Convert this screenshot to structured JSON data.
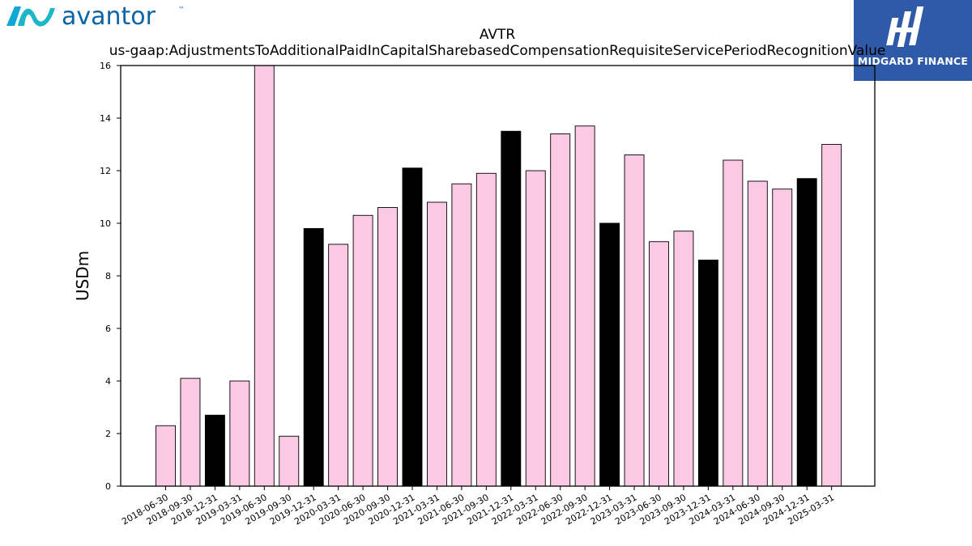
{
  "brand_left": {
    "name": "avantor",
    "tm": "™"
  },
  "brand_right": {
    "name": "MIDGARD FINANCE"
  },
  "colors": {
    "highlight": "#000000",
    "normal": "#fbc9e3",
    "edge": "#000000",
    "brand_blue": "#2e5aa8",
    "avantor_teal": "#0fa7d6"
  },
  "chart_data": {
    "type": "bar",
    "title": "AVTR",
    "subtitle": "us-gaap:AdjustmentsToAdditionalPaidInCapitalSharebasedCompensationRequisiteServicePeriodRecognitionValue",
    "xlabel": "",
    "ylabel": "USDm",
    "ylim": [
      0,
      16
    ],
    "yticks": [
      0,
      2,
      4,
      6,
      8,
      10,
      12,
      14,
      16
    ],
    "grid": false,
    "categories": [
      "2018-06-30",
      "2018-09-30",
      "2018-12-31",
      "2019-03-31",
      "2019-06-30",
      "2019-09-30",
      "2019-12-31",
      "2020-03-31",
      "2020-06-30",
      "2020-09-30",
      "2020-12-31",
      "2021-03-31",
      "2021-06-30",
      "2021-09-30",
      "2021-12-31",
      "2022-03-31",
      "2022-06-30",
      "2022-09-30",
      "2022-12-31",
      "2023-03-31",
      "2023-06-30",
      "2023-09-30",
      "2023-12-31",
      "2024-03-31",
      "2024-06-30",
      "2024-09-30",
      "2024-12-31",
      "2025-03-31"
    ],
    "values": [
      2.3,
      4.1,
      2.7,
      4.0,
      16.5,
      1.9,
      9.8,
      9.2,
      10.3,
      10.6,
      12.1,
      10.8,
      11.5,
      11.9,
      13.5,
      12.0,
      13.4,
      13.7,
      10.0,
      12.6,
      9.3,
      9.7,
      8.6,
      12.4,
      11.6,
      11.3,
      11.7,
      13.0
    ],
    "highlighted": [
      false,
      false,
      true,
      false,
      false,
      false,
      true,
      false,
      false,
      false,
      true,
      false,
      false,
      false,
      true,
      false,
      false,
      false,
      true,
      false,
      false,
      false,
      true,
      false,
      false,
      false,
      true,
      false
    ]
  }
}
